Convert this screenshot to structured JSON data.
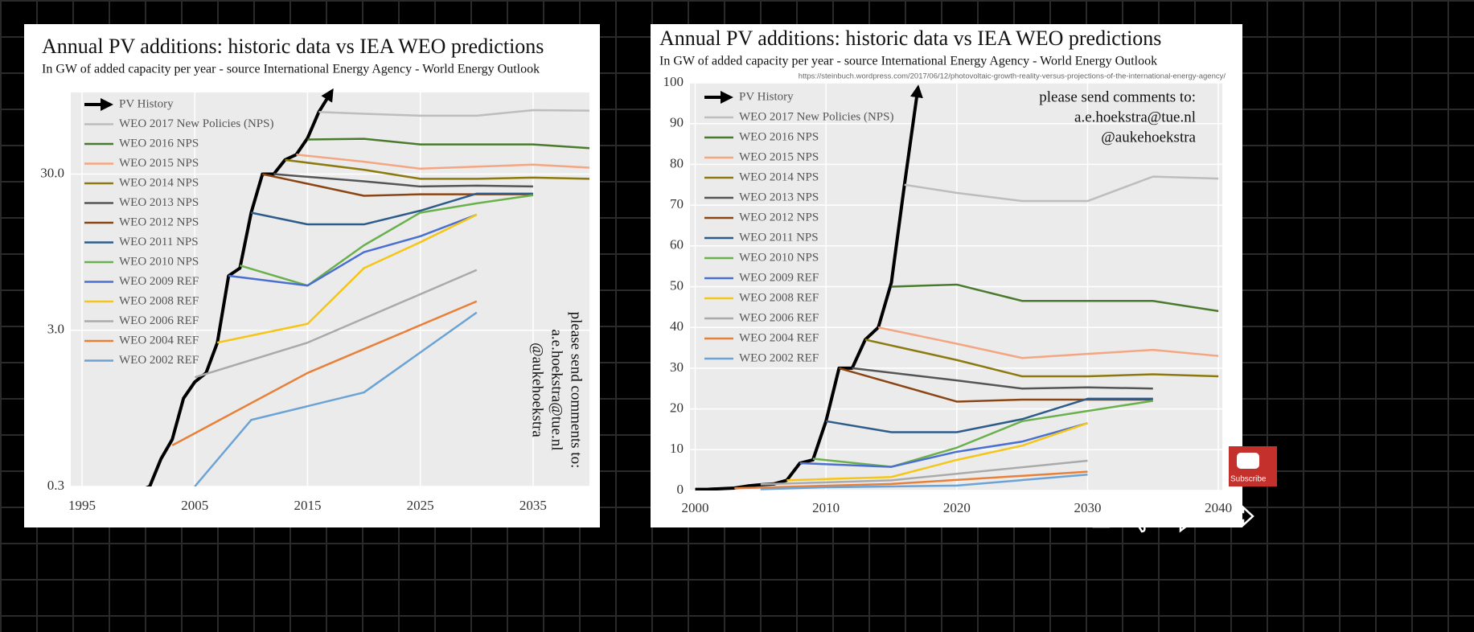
{
  "chart_data": [
    {
      "type": "line",
      "title": "Annual PV additions: historic data vs IEA WEO predictions",
      "subtitle": "In GW of added capacity per year - source International Energy Agency - World Energy Outlook",
      "annotations": [
        "please send comments to:",
        "a.e.hoekstra@tue.nl",
        "@aukehoekstra"
      ],
      "log_scale": true,
      "grid": true,
      "xlim": [
        1994,
        2040
      ],
      "xticks": [
        1995,
        2005,
        2015,
        2025,
        2035
      ],
      "ylim": [
        0.3,
        100
      ],
      "yticks": [
        0.3,
        {
          "value": 3,
          "label": "3.0"
        },
        {
          "value": 30,
          "label": "30.0"
        }
      ],
      "series": [
        {
          "name": "PV History",
          "color": "#000000",
          "line_end": "arrow",
          "x": [
            2000,
            2001,
            2002,
            2003,
            2004,
            2005,
            2006,
            2007,
            2008,
            2009,
            2010,
            2011,
            2012,
            2013,
            2014,
            2015,
            2016,
            2017
          ],
          "values": [
            0.28,
            0.3,
            0.45,
            0.6,
            1.1,
            1.4,
            1.6,
            2.5,
            6.7,
            7.5,
            17,
            30,
            30,
            37,
            40,
            51,
            75,
            98
          ]
        },
        {
          "name": "WEO 2017 New Policies (NPS)",
          "color": "#bdbdbd",
          "x": [
            2016,
            2020,
            2025,
            2030,
            2035,
            2040
          ],
          "values": [
            75,
            73,
            71,
            71,
            77,
            76.5
          ]
        },
        {
          "name": "WEO 2016 NPS",
          "color": "#4a7a2e",
          "x": [
            2015,
            2020,
            2025,
            2030,
            2035,
            2040
          ],
          "values": [
            50,
            50.5,
            46.5,
            46.5,
            46.5,
            44
          ]
        },
        {
          "name": "WEO 2015 NPS",
          "color": "#f4a582",
          "x": [
            2014,
            2020,
            2025,
            2030,
            2035,
            2040
          ],
          "values": [
            40,
            36,
            32.5,
            33.5,
            34.5,
            33
          ]
        },
        {
          "name": "WEO 2014 NPS",
          "color": "#8c7a0f",
          "x": [
            2013,
            2020,
            2025,
            2030,
            2035,
            2040
          ],
          "values": [
            37,
            32,
            28,
            28,
            28.5,
            28
          ]
        },
        {
          "name": "WEO 2013 NPS",
          "color": "#555555",
          "x": [
            2012,
            2020,
            2025,
            2030,
            2035
          ],
          "values": [
            30,
            27,
            25,
            25.3,
            25
          ]
        },
        {
          "name": "WEO 2012 NPS",
          "color": "#8b4513",
          "x": [
            2011,
            2020,
            2025,
            2030,
            2035
          ],
          "values": [
            30,
            21.8,
            22.3,
            22.3,
            22.3
          ]
        },
        {
          "name": "WEO 2011 NPS",
          "color": "#2e5c8a",
          "x": [
            2010,
            2015,
            2020,
            2025,
            2030,
            2035
          ],
          "values": [
            17,
            14.3,
            14.3,
            17.5,
            22.5,
            22.5
          ]
        },
        {
          "name": "WEO 2010 NPS",
          "color": "#6ab04c",
          "x": [
            2009,
            2015,
            2020,
            2025,
            2030,
            2035
          ],
          "values": [
            7.8,
            5.8,
            10.5,
            17,
            19.5,
            22
          ]
        },
        {
          "name": "WEO 2009 REF",
          "color": "#4a6fd0",
          "x": [
            2008,
            2015,
            2020,
            2025,
            2030
          ],
          "values": [
            6.7,
            5.8,
            9.5,
            12,
            16.5
          ]
        },
        {
          "name": "WEO 2008 REF",
          "color": "#f5c518",
          "x": [
            2007,
            2015,
            2020,
            2025,
            2030
          ],
          "values": [
            2.5,
            3.3,
            7.5,
            11,
            16.5
          ]
        },
        {
          "name": "WEO 2006 REF",
          "color": "#aaaaaa",
          "x": [
            2005,
            2015,
            2030
          ],
          "values": [
            1.5,
            2.5,
            7.3
          ]
        },
        {
          "name": "WEO 2004 REF",
          "color": "#e8803a",
          "x": [
            2003,
            2015,
            2030
          ],
          "values": [
            0.55,
            1.6,
            4.6
          ]
        },
        {
          "name": "WEO 2002 REF",
          "color": "#6ba3d6",
          "x": [
            2005,
            2010,
            2020,
            2030
          ],
          "values": [
            0.3,
            0.8,
            1.2,
            3.9
          ]
        }
      ]
    },
    {
      "type": "line",
      "title": "Annual PV additions: historic data vs IEA WEO predictions",
      "subtitle": "In GW of added capacity per year - source International Energy Agency - World Energy Outlook",
      "source_url": "https://steinbuch.wordpress.com/2017/06/12/photovoltaic-growth-reality-versus-projections-of-the-international-energy-agency/",
      "annotations": [
        "please send comments to:",
        "a.e.hoekstra@tue.nl",
        "@aukehoekstra"
      ],
      "log_scale": false,
      "grid": true,
      "xlim": [
        1999.6,
        2040.3
      ],
      "xticks": [
        2000,
        2010,
        2020,
        2030,
        2040
      ],
      "ylim": [
        0,
        100
      ],
      "yticks": [
        0,
        10,
        20,
        30,
        40,
        50,
        60,
        70,
        80,
        90,
        100
      ],
      "series": [
        {
          "name": "PV History",
          "color": "#000000",
          "line_end": "arrow",
          "x": [
            2000,
            2001,
            2002,
            2003,
            2004,
            2005,
            2006,
            2007,
            2008,
            2009,
            2010,
            2011,
            2012,
            2013,
            2014,
            2015,
            2016,
            2017
          ],
          "values": [
            0.28,
            0.3,
            0.45,
            0.6,
            1.1,
            1.4,
            1.6,
            2.5,
            6.7,
            7.5,
            17,
            30,
            30,
            37,
            40,
            51,
            75,
            98
          ]
        },
        {
          "name": "WEO 2017 New Policies (NPS)",
          "color": "#bdbdbd",
          "x": [
            2016,
            2020,
            2025,
            2030,
            2035,
            2040
          ],
          "values": [
            75,
            73,
            71,
            71,
            77,
            76.5
          ]
        },
        {
          "name": "WEO 2016 NPS",
          "color": "#4a7a2e",
          "x": [
            2015,
            2020,
            2025,
            2030,
            2035,
            2040
          ],
          "values": [
            50,
            50.5,
            46.5,
            46.5,
            46.5,
            44
          ]
        },
        {
          "name": "WEO 2015 NPS",
          "color": "#f4a582",
          "x": [
            2014,
            2020,
            2025,
            2030,
            2035,
            2040
          ],
          "values": [
            40,
            36,
            32.5,
            33.5,
            34.5,
            33
          ]
        },
        {
          "name": "WEO 2014 NPS",
          "color": "#8c7a0f",
          "x": [
            2013,
            2020,
            2025,
            2030,
            2035,
            2040
          ],
          "values": [
            37,
            32,
            28,
            28,
            28.5,
            28
          ]
        },
        {
          "name": "WEO 2013 NPS",
          "color": "#555555",
          "x": [
            2012,
            2020,
            2025,
            2030,
            2035
          ],
          "values": [
            30,
            27,
            25,
            25.3,
            25
          ]
        },
        {
          "name": "WEO 2012 NPS",
          "color": "#8b4513",
          "x": [
            2011,
            2020,
            2025,
            2030,
            2035
          ],
          "values": [
            30,
            21.8,
            22.3,
            22.3,
            22.3
          ]
        },
        {
          "name": "WEO 2011 NPS",
          "color": "#2e5c8a",
          "x": [
            2010,
            2015,
            2020,
            2025,
            2030,
            2035
          ],
          "values": [
            17,
            14.3,
            14.3,
            17.5,
            22.5,
            22.5
          ]
        },
        {
          "name": "WEO 2010 NPS",
          "color": "#6ab04c",
          "x": [
            2009,
            2015,
            2020,
            2025,
            2030,
            2035
          ],
          "values": [
            7.8,
            5.8,
            10.5,
            17,
            19.5,
            22
          ]
        },
        {
          "name": "WEO 2009 REF",
          "color": "#4a6fd0",
          "x": [
            2008,
            2015,
            2020,
            2025,
            2030
          ],
          "values": [
            6.7,
            5.8,
            9.5,
            12,
            16.5
          ]
        },
        {
          "name": "WEO 2008 REF",
          "color": "#f5c518",
          "x": [
            2007,
            2015,
            2020,
            2025,
            2030
          ],
          "values": [
            2.5,
            3.3,
            7.5,
            11,
            16.5
          ]
        },
        {
          "name": "WEO 2006 REF",
          "color": "#aaaaaa",
          "x": [
            2005,
            2015,
            2030
          ],
          "values": [
            1.5,
            2.5,
            7.3
          ]
        },
        {
          "name": "WEO 2004 REF",
          "color": "#e8803a",
          "x": [
            2003,
            2015,
            2030
          ],
          "values": [
            0.55,
            1.6,
            4.6
          ]
        },
        {
          "name": "WEO 2002 REF",
          "color": "#6ba3d6",
          "x": [
            2005,
            2010,
            2020,
            2030
          ],
          "values": [
            0.3,
            0.8,
            1.2,
            3.9
          ]
        }
      ]
    }
  ],
  "overlay": {
    "subscribe": "Subscribe"
  }
}
